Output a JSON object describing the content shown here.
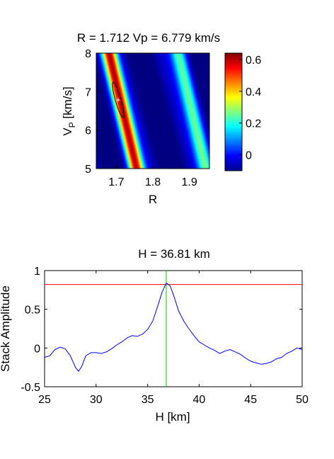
{
  "colors": {
    "bg": "#ffffff",
    "axis": "#000000",
    "stack_line": "#0000ff",
    "ref_line": "#ff0000",
    "pick_line": "#00cc00"
  },
  "chart_data": [
    {
      "type": "heatmap",
      "title": "R = 1.712  Vp = 6.779 km/s",
      "xlabel": "R",
      "ylabel_main": "V",
      "ylabel_sub": "P",
      "ylabel_units": " [km/s]",
      "xlim": [
        1.645,
        1.955
      ],
      "ylim": [
        5,
        8
      ],
      "xticks": [
        1.7,
        1.8,
        1.9
      ],
      "xtick_labels": [
        "1.7",
        "1.8",
        "1.9"
      ],
      "yticks": [
        5,
        6,
        7,
        8
      ],
      "ytick_labels": [
        "5",
        "6",
        "7",
        "8"
      ],
      "colormap": "jet",
      "clim": [
        -0.1,
        0.64
      ],
      "colorbar_ticks": [
        0,
        0.2,
        0.4,
        0.6
      ],
      "colorbar_tick_labels": [
        "0",
        "0.2",
        "0.4",
        "0.6"
      ],
      "max_point": {
        "R": 1.712,
        "Vp": 6.779
      },
      "bands": [
        {
          "R_at_Vp8": 1.68,
          "slope_dR_dVp": -0.025,
          "amp": 0.64,
          "width": 0.02
        },
        {
          "R_at_Vp8": 1.87,
          "slope_dR_dVp": -0.025,
          "amp": 0.3,
          "width": 0.02
        }
      ]
    },
    {
      "type": "line",
      "title": "H = 36.81 km",
      "xlabel": "H [km]",
      "ylabel": "Stack Amplitude",
      "xlim": [
        25,
        50
      ],
      "ylim": [
        -0.5,
        1
      ],
      "xticks": [
        25,
        30,
        35,
        40,
        45,
        50
      ],
      "xtick_labels": [
        "25",
        "30",
        "35",
        "40",
        "45",
        "50"
      ],
      "yticks": [
        -0.5,
        0,
        0.5,
        1
      ],
      "ytick_labels": [
        "-0.5",
        "0",
        "0.5",
        "1"
      ],
      "hline_y": 0.82,
      "vline_x": 36.81,
      "series": [
        {
          "x": [
            25,
            25.5,
            26,
            26.5,
            27,
            27.5,
            28,
            28.3,
            28.6,
            29,
            29.5,
            30,
            30.5,
            31,
            31.5,
            32,
            32.5,
            33,
            33.5,
            34,
            34.5,
            35,
            35.5,
            36,
            36.4,
            36.81,
            37.2,
            37.6,
            38,
            38.5,
            39,
            39.5,
            40,
            40.5,
            41,
            41.5,
            42,
            42.5,
            43,
            43.5,
            44,
            44.5,
            45,
            45.5,
            46,
            46.5,
            47,
            47.5,
            48,
            48.5,
            49,
            49.5,
            50
          ],
          "y": [
            -0.12,
            -0.1,
            -0.02,
            0.01,
            -0.01,
            -0.1,
            -0.25,
            -0.3,
            -0.24,
            -0.1,
            -0.06,
            -0.06,
            -0.07,
            -0.05,
            -0.01,
            0.04,
            0.08,
            0.13,
            0.16,
            0.15,
            0.18,
            0.24,
            0.35,
            0.55,
            0.72,
            0.84,
            0.8,
            0.65,
            0.48,
            0.35,
            0.25,
            0.16,
            0.08,
            0.04,
            0.0,
            -0.03,
            -0.07,
            -0.04,
            -0.02,
            -0.05,
            -0.08,
            -0.13,
            -0.17,
            -0.19,
            -0.21,
            -0.2,
            -0.18,
            -0.14,
            -0.12,
            -0.07,
            -0.04,
            0.0,
            -0.02
          ]
        }
      ]
    }
  ]
}
